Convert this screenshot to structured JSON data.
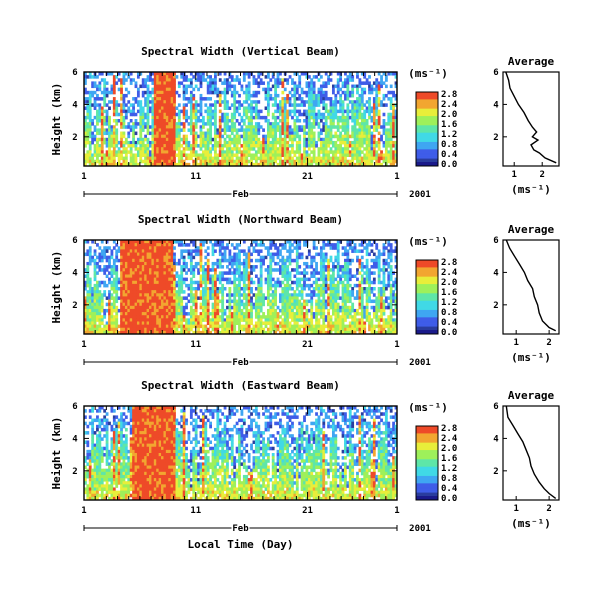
{
  "chart_data": [
    {
      "type": "heatmap",
      "title": "Spectral Width (Vertical Beam)",
      "ylabel": "Height (km)",
      "ylim": [
        0.2,
        6
      ],
      "yticks": [
        "6",
        "4",
        "2"
      ],
      "xlim": [
        1,
        29
      ],
      "xticks": [
        "1",
        "11",
        "21",
        "1"
      ],
      "month_label": "Feb",
      "year_label": "2001",
      "colorbar": {
        "unit": "(ms⁻¹)",
        "ticks": [
          "2.8",
          "2.4",
          "2.0",
          "1.6",
          "1.2",
          "0.8",
          "0.4",
          "0.0"
        ],
        "range": [
          0,
          2.8
        ]
      },
      "highlight_spans": [
        [
          7.3,
          9.2
        ]
      ],
      "profile": {
        "title": "Average",
        "xlabel": "(ms⁻¹)",
        "xticks": [
          "1",
          "2"
        ],
        "yticks": [
          "6",
          "4",
          "2"
        ],
        "xlim": [
          0.6,
          2.6
        ],
        "ylim": [
          0.2,
          6
        ],
        "points": [
          [
            0.7,
            6.0
          ],
          [
            0.8,
            5.5
          ],
          [
            0.85,
            5.0
          ],
          [
            1.0,
            4.5
          ],
          [
            1.15,
            4.0
          ],
          [
            1.35,
            3.5
          ],
          [
            1.5,
            3.0
          ],
          [
            1.65,
            2.6
          ],
          [
            1.8,
            2.3
          ],
          [
            1.65,
            2.0
          ],
          [
            1.85,
            1.8
          ],
          [
            1.6,
            1.5
          ],
          [
            1.7,
            1.2
          ],
          [
            1.9,
            1.0
          ],
          [
            2.1,
            0.7
          ],
          [
            2.5,
            0.4
          ]
        ]
      }
    },
    {
      "type": "heatmap",
      "title": "Spectral Width (Northward Beam)",
      "ylabel": "Height (km)",
      "ylim": [
        0.2,
        6
      ],
      "yticks": [
        "6",
        "4",
        "2"
      ],
      "xlim": [
        1,
        29
      ],
      "xticks": [
        "1",
        "11",
        "21",
        "1"
      ],
      "month_label": "Feb",
      "year_label": "2001",
      "colorbar": {
        "unit": "(ms⁻¹)",
        "ticks": [
          "2.8",
          "2.4",
          "2.0",
          "1.6",
          "1.2",
          "0.8",
          "0.4",
          "0.0"
        ],
        "range": [
          0,
          2.8
        ]
      },
      "highlight_spans": [
        [
          4.3,
          9.0
        ]
      ],
      "profile": {
        "title": "Average",
        "xlabel": "(ms⁻¹)",
        "xticks": [
          "1",
          "2"
        ],
        "yticks": [
          "6",
          "4",
          "2"
        ],
        "xlim": [
          0.6,
          2.3
        ],
        "ylim": [
          0.2,
          6
        ],
        "points": [
          [
            0.7,
            6.0
          ],
          [
            0.8,
            5.5
          ],
          [
            0.95,
            5.0
          ],
          [
            1.1,
            4.5
          ],
          [
            1.25,
            4.0
          ],
          [
            1.35,
            3.5
          ],
          [
            1.5,
            3.0
          ],
          [
            1.55,
            2.5
          ],
          [
            1.65,
            2.0
          ],
          [
            1.7,
            1.5
          ],
          [
            1.8,
            1.0
          ],
          [
            2.0,
            0.6
          ],
          [
            2.2,
            0.4
          ]
        ]
      }
    },
    {
      "type": "heatmap",
      "title": "Spectral Width (Eastward Beam)",
      "ylabel": "Height (km)",
      "xlabel": "Local Time (Day)",
      "ylim": [
        0.2,
        6
      ],
      "yticks": [
        "6",
        "4",
        "2"
      ],
      "xlim": [
        1,
        29
      ],
      "xticks": [
        "1",
        "11",
        "21",
        "1"
      ],
      "month_label": "Feb",
      "year_label": "2001",
      "colorbar": {
        "unit": "(ms⁻¹)",
        "ticks": [
          "2.8",
          "2.4",
          "2.0",
          "1.6",
          "1.2",
          "0.8",
          "0.4",
          "0.0"
        ],
        "range": [
          0,
          2.8
        ]
      },
      "highlight_spans": [
        [
          5.3,
          9.2
        ]
      ],
      "profile": {
        "title": "Average",
        "xlabel": "(ms⁻¹)",
        "xticks": [
          "1",
          "2"
        ],
        "yticks": [
          "6",
          "4",
          "2"
        ],
        "xlim": [
          0.6,
          2.3
        ],
        "ylim": [
          0.2,
          6
        ],
        "points": [
          [
            0.7,
            6.0
          ],
          [
            0.75,
            5.3
          ],
          [
            0.9,
            4.8
          ],
          [
            1.05,
            4.3
          ],
          [
            1.2,
            3.8
          ],
          [
            1.3,
            3.3
          ],
          [
            1.4,
            2.8
          ],
          [
            1.45,
            2.3
          ],
          [
            1.55,
            1.8
          ],
          [
            1.7,
            1.3
          ],
          [
            1.85,
            0.9
          ],
          [
            2.0,
            0.6
          ],
          [
            2.2,
            0.3
          ]
        ]
      }
    }
  ],
  "colors": {
    "colormap": [
      "#2a3d9e",
      "#3f5de8",
      "#3fa6f2",
      "#40d9e6",
      "#5ee6a8",
      "#9ef05a",
      "#e8ee3a",
      "#f2a630",
      "#ee4a28"
    ],
    "missing": "#ffffff",
    "frame": "#000000",
    "low_band": "#1a1a8a"
  }
}
